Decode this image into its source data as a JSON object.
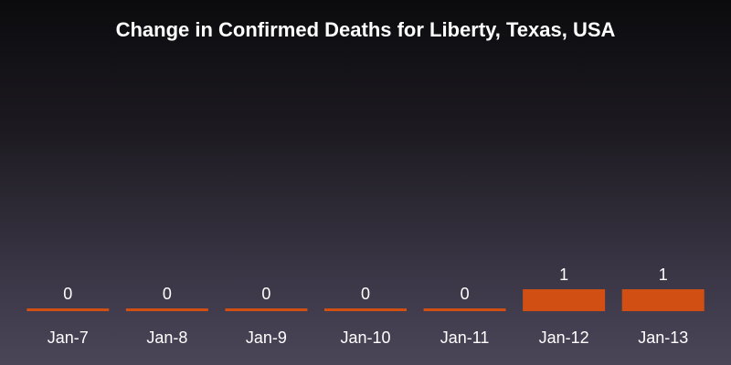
{
  "chart_data": {
    "type": "bar",
    "title": "Change in Confirmed Deaths for Liberty, Texas, USA",
    "xlabel": "",
    "ylabel": "",
    "categories": [
      "Jan-7",
      "Jan-8",
      "Jan-9",
      "Jan-10",
      "Jan-11",
      "Jan-12",
      "Jan-13"
    ],
    "values": [
      0,
      0,
      0,
      0,
      0,
      1,
      1
    ],
    "ylim": [
      0,
      1
    ],
    "grid": false,
    "bar_color": "#d14f12",
    "background_colors": [
      "#0b0b0e",
      "#4a4658"
    ]
  }
}
